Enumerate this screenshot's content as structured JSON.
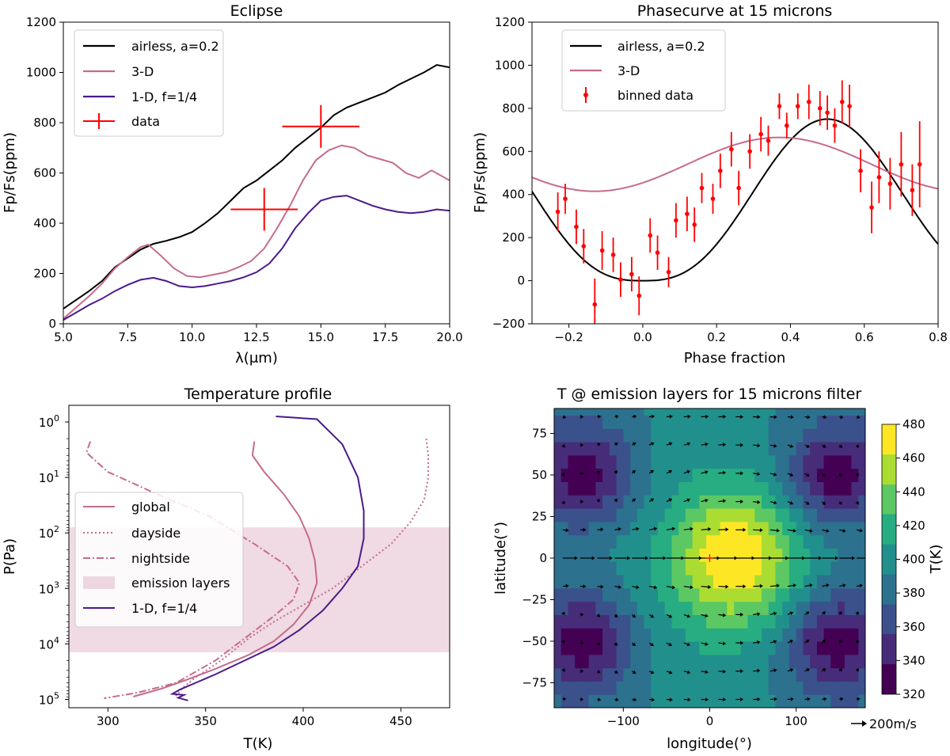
{
  "chart_data": [
    {
      "id": "eclipse",
      "type": "line",
      "title": "Eclipse",
      "xlabel": "λ(μm)",
      "ylabel": "Fp/Fs(ppm)",
      "xlim": [
        5.0,
        20.0
      ],
      "ylim": [
        0,
        1200
      ],
      "xticks": [
        5.0,
        7.5,
        10.0,
        12.5,
        15.0,
        17.5,
        20.0
      ],
      "xtick_labels": [
        "5.0",
        "7.5",
        "10.0",
        "12.5",
        "15.0",
        "17.5",
        "20.0"
      ],
      "yticks": [
        0,
        200,
        400,
        600,
        800,
        1000,
        1200
      ],
      "ytick_labels": [
        "0",
        "200",
        "400",
        "600",
        "800",
        "1000",
        "1200"
      ],
      "legend_location": "upper-left",
      "series": [
        {
          "name": "airless, a=0.2",
          "color": "#000000",
          "dash": "solid",
          "x": [
            5.0,
            5.5,
            6.0,
            6.5,
            7.0,
            7.5,
            8.0,
            8.5,
            9.0,
            9.5,
            10.0,
            10.5,
            11.0,
            11.5,
            12.0,
            12.5,
            13.0,
            13.5,
            14.0,
            14.5,
            15.0,
            15.5,
            16.0,
            16.5,
            17.0,
            17.5,
            18.0,
            18.5,
            19.0,
            19.5,
            20.0
          ],
          "y": [
            60,
            95,
            130,
            170,
            225,
            260,
            295,
            318,
            330,
            345,
            365,
            400,
            440,
            490,
            540,
            570,
            610,
            650,
            700,
            740,
            780,
            830,
            860,
            880,
            900,
            920,
            950,
            975,
            1000,
            1030,
            1020
          ]
        },
        {
          "name": "3-D",
          "color": "#c56b8e",
          "dash": "solid",
          "x": [
            5.0,
            5.5,
            6.0,
            6.5,
            7.0,
            7.5,
            8.0,
            8.3,
            8.8,
            9.3,
            9.8,
            10.3,
            10.8,
            11.3,
            11.8,
            12.3,
            12.8,
            13.3,
            13.8,
            14.3,
            14.8,
            15.3,
            15.8,
            16.3,
            16.8,
            17.3,
            17.8,
            18.3,
            18.8,
            19.3,
            20.0
          ],
          "y": [
            20,
            65,
            110,
            160,
            220,
            265,
            305,
            315,
            270,
            220,
            190,
            185,
            195,
            205,
            225,
            250,
            300,
            380,
            470,
            570,
            650,
            690,
            710,
            700,
            670,
            655,
            640,
            600,
            580,
            610,
            570
          ]
        },
        {
          "name": "1-D, f=1/4",
          "color": "#4a1a8c",
          "dash": "solid",
          "x": [
            5.0,
            5.5,
            6.0,
            6.5,
            7.0,
            7.5,
            8.0,
            8.5,
            9.0,
            9.5,
            10.0,
            10.5,
            11.0,
            11.5,
            12.0,
            12.5,
            13.0,
            13.5,
            14.0,
            14.5,
            15.0,
            15.5,
            16.0,
            16.5,
            17.0,
            17.5,
            18.0,
            18.5,
            19.0,
            19.5,
            20.0
          ],
          "y": [
            15,
            45,
            75,
            100,
            130,
            155,
            175,
            183,
            170,
            150,
            145,
            150,
            160,
            170,
            185,
            205,
            240,
            300,
            380,
            440,
            490,
            505,
            510,
            490,
            470,
            455,
            445,
            440,
            445,
            455,
            450
          ]
        }
      ],
      "points": [
        {
          "name": "data",
          "color": "#ff0000",
          "x": 12.8,
          "y": 455,
          "xerr": 1.3,
          "yerr": 85
        },
        {
          "name": "data",
          "color": "#ff0000",
          "x": 15.0,
          "y": 785,
          "xerr": 1.5,
          "yerr": 85
        }
      ]
    },
    {
      "id": "phasecurve",
      "type": "line",
      "title": "Phasecurve at 15 microns",
      "xlabel": "Phase fraction",
      "ylabel": "Fp/Fs(ppm)",
      "xlim": [
        -0.3,
        0.8
      ],
      "ylim": [
        -200,
        1200
      ],
      "xticks": [
        -0.2,
        0.0,
        0.2,
        0.4,
        0.6,
        0.8
      ],
      "xtick_labels": [
        "−0.2",
        "0.0",
        "0.2",
        "0.4",
        "0.6",
        "0.8"
      ],
      "yticks": [
        -200,
        0,
        200,
        400,
        600,
        800,
        1000,
        1200
      ],
      "ytick_labels": [
        "−200",
        "0",
        "200",
        "400",
        "600",
        "800",
        "1000",
        "1200"
      ],
      "legend_location": "upper-left",
      "series": [
        {
          "name": "airless, a=0.2",
          "color": "#000000",
          "dash": "solid",
          "model": {
            "kind": "airless",
            "offset": 0,
            "amplitude": 750,
            "peak": 0.5,
            "flat_width": 0.06
          }
        },
        {
          "name": "3-D",
          "color": "#c56b8e",
          "dash": "solid",
          "model": {
            "kind": "cosine",
            "mean": 540,
            "amplitude": 125,
            "peak": 0.37
          }
        }
      ],
      "binned_data": {
        "name": "binned data",
        "color": "#ff0000",
        "x": [
          -0.23,
          -0.21,
          -0.18,
          -0.16,
          -0.13,
          -0.11,
          -0.08,
          -0.06,
          -0.03,
          -0.01,
          0.02,
          0.04,
          0.07,
          0.09,
          0.12,
          0.14,
          0.16,
          0.19,
          0.21,
          0.24,
          0.26,
          0.29,
          0.32,
          0.34,
          0.37,
          0.39,
          0.42,
          0.45,
          0.48,
          0.5,
          0.52,
          0.54,
          0.56,
          0.59,
          0.62,
          0.64,
          0.67,
          0.7,
          0.73,
          0.75
        ],
        "y": [
          320,
          380,
          250,
          160,
          -110,
          140,
          120,
          5,
          30,
          -70,
          210,
          130,
          40,
          280,
          310,
          260,
          430,
          380,
          510,
          610,
          430,
          600,
          680,
          650,
          810,
          720,
          810,
          830,
          800,
          780,
          720,
          830,
          810,
          510,
          340,
          480,
          450,
          540,
          420,
          540
        ],
        "err": [
          90,
          70,
          80,
          80,
          120,
          90,
          80,
          80,
          80,
          90,
          80,
          80,
          70,
          80,
          80,
          80,
          70,
          70,
          80,
          80,
          80,
          80,
          80,
          70,
          60,
          60,
          60,
          80,
          80,
          80,
          80,
          100,
          100,
          100,
          120,
          120,
          120,
          150,
          120,
          200
        ]
      }
    },
    {
      "id": "temperature-profile",
      "type": "line",
      "title": "Temperature profile",
      "xlabel": "T(K)",
      "ylabel": "P(Pa)",
      "xlim": [
        280,
        475
      ],
      "ylim_log10": [
        -0.3,
        5.15
      ],
      "xticks": [
        300,
        350,
        400,
        450
      ],
      "xtick_labels": [
        "300",
        "350",
        "400",
        "450"
      ],
      "yticks_log10": [
        0,
        1,
        2,
        3,
        4,
        5
      ],
      "ytick_labels": [
        "10^0",
        "10^1",
        "10^2",
        "10^3",
        "10^4",
        "10^5"
      ],
      "emission_layers": {
        "name": "emission layers",
        "color": "#c56b8e",
        "from_log10": 1.9,
        "to_log10": 4.15
      },
      "legend_location": "center-left",
      "series": [
        {
          "name": "global",
          "color": "#c56b8e",
          "dash": "solid",
          "T": [
            375,
            374,
            380,
            390,
            398,
            403,
            406,
            407,
            403,
            395,
            385,
            372,
            355,
            340,
            328,
            318,
            313
          ],
          "logP": [
            0.35,
            0.6,
            0.9,
            1.3,
            1.7,
            2.1,
            2.5,
            2.9,
            3.3,
            3.65,
            3.95,
            4.2,
            4.45,
            4.65,
            4.8,
            4.9,
            4.95
          ]
        },
        {
          "name": "dayside",
          "color": "#c56b8e",
          "dash": "dotted",
          "T": [
            463,
            464,
            464,
            462,
            455,
            445,
            430,
            415,
            400,
            385,
            372,
            358,
            345,
            338,
            334
          ],
          "logP": [
            0.3,
            0.6,
            1.0,
            1.4,
            1.8,
            2.2,
            2.6,
            3.0,
            3.3,
            3.6,
            3.9,
            4.3,
            4.6,
            4.8,
            4.97
          ]
        },
        {
          "name": "nightside",
          "color": "#c56b8e",
          "dash": "dashdot",
          "T": [
            291,
            289,
            300,
            325,
            352,
            375,
            392,
            398,
            395,
            385,
            370,
            355,
            335,
            315,
            298
          ],
          "logP": [
            0.35,
            0.55,
            0.9,
            1.3,
            1.7,
            2.2,
            2.6,
            2.9,
            3.2,
            3.5,
            3.9,
            4.3,
            4.7,
            4.88,
            4.98
          ]
        },
        {
          "name": "1-D, f=1/4",
          "color": "#4a1a8c",
          "dash": "solid",
          "T": [
            386,
            407,
            420,
            428,
            431,
            431,
            428,
            420,
            410,
            398,
            385,
            370,
            355,
            345,
            337,
            333,
            339,
            336,
            341
          ],
          "logP": [
            -0.1,
            -0.05,
            0.4,
            1.0,
            1.6,
            2.1,
            2.6,
            3.0,
            3.4,
            3.75,
            4.05,
            4.3,
            4.55,
            4.7,
            4.82,
            4.9,
            4.92,
            4.97,
            5.02
          ]
        }
      ]
    },
    {
      "id": "emission-map",
      "type": "heatmap",
      "title": "T @ emission layers for 15 microns filter",
      "xlabel": "longitude(°)",
      "ylabel": "latitude(°)",
      "xlim": [
        -180,
        180
      ],
      "ylim": [
        -90,
        90
      ],
      "xticks": [
        -100,
        0,
        100
      ],
      "xtick_labels": [
        "−100",
        "0",
        "100"
      ],
      "yticks": [
        -75,
        -50,
        -25,
        0,
        25,
        50,
        75
      ],
      "ytick_labels": [
        "−75",
        "−50",
        "−25",
        "0",
        "25",
        "50",
        "75"
      ],
      "colorbar": {
        "label": "T(K)",
        "min": 320,
        "max": 480,
        "ticks": [
          320,
          340,
          360,
          380,
          400,
          420,
          440,
          460,
          480
        ],
        "tick_labels": [
          "320",
          "340",
          "360",
          "380",
          "400",
          "420",
          "440",
          "460",
          "480"
        ],
        "colors": [
          "#440154",
          "#472c7a",
          "#3b518b",
          "#2c718e",
          "#21908d",
          "#27ad81",
          "#5cc863",
          "#aadc32",
          "#fde725"
        ]
      },
      "hotspot_marker": {
        "lon": 0,
        "lat": 0,
        "color": "#ff0000"
      },
      "quiver_key": "200m/s"
    }
  ]
}
